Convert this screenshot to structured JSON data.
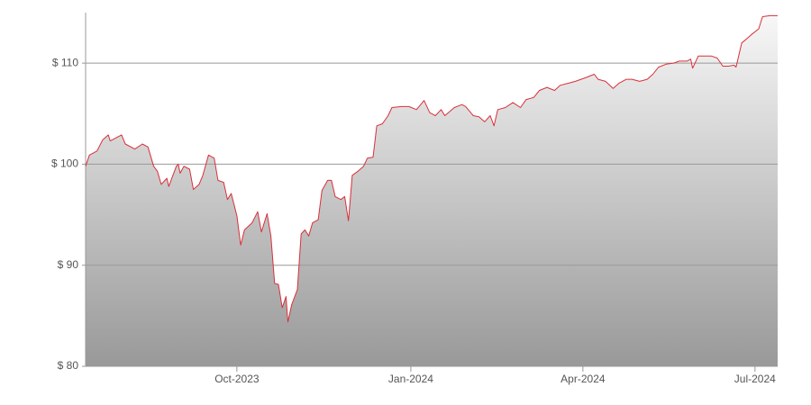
{
  "chart_data": {
    "type": "area",
    "x": [
      0,
      2,
      6,
      9,
      12,
      13,
      19,
      21,
      26,
      30,
      33,
      36,
      38,
      40,
      43,
      44,
      48,
      49,
      50,
      52,
      55,
      57,
      60,
      62,
      65,
      68,
      70,
      73,
      75,
      77,
      80,
      82,
      84,
      88,
      91,
      93,
      96,
      98,
      100,
      102,
      104,
      106,
      107,
      109,
      112,
      114,
      116,
      118,
      120,
      123,
      125,
      128,
      130,
      132,
      135,
      137,
      139,
      141,
      144,
      147,
      149,
      152,
      154,
      157,
      160,
      162,
      167,
      171,
      175,
      179,
      182,
      185,
      188,
      190,
      195,
      199,
      201,
      205,
      208,
      211,
      214,
      216,
      218,
      222,
      226,
      230,
      233,
      237,
      240,
      244,
      248,
      251,
      255,
      259,
      262,
      265,
      269,
      271,
      275,
      279,
      282,
      286,
      289,
      293,
      297,
      300,
      303,
      307,
      311,
      314,
      318,
      320,
      321,
      324,
      327,
      331,
      334,
      337,
      340,
      343,
      344,
      347,
      349,
      352,
      356,
      358,
      362,
      366
    ],
    "values": [
      99.8,
      100.9,
      101.3,
      102.4,
      102.9,
      102.3,
      102.9,
      102.0,
      101.5,
      102.0,
      101.7,
      99.8,
      99.3,
      98.0,
      98.6,
      97.8,
      99.8,
      100.0,
      99.1,
      99.8,
      99.5,
      97.5,
      98.0,
      98.9,
      100.9,
      100.6,
      98.4,
      98.2,
      96.5,
      97.1,
      94.9,
      92.0,
      93.5,
      94.2,
      95.3,
      93.3,
      95.1,
      92.9,
      88.2,
      88.1,
      85.8,
      86.9,
      84.4,
      86.1,
      87.6,
      93.1,
      93.5,
      92.9,
      94.2,
      94.5,
      97.4,
      98.4,
      98.4,
      96.8,
      96.5,
      96.8,
      94.4,
      98.9,
      99.3,
      99.8,
      100.6,
      100.7,
      103.8,
      104.0,
      104.8,
      105.6,
      105.7,
      105.7,
      105.4,
      106.3,
      105.1,
      104.8,
      105.4,
      104.8,
      105.6,
      105.9,
      105.7,
      104.8,
      104.7,
      104.2,
      104.8,
      103.8,
      105.4,
      105.6,
      106.1,
      105.6,
      106.4,
      106.6,
      107.3,
      107.6,
      107.3,
      107.8,
      108.0,
      108.2,
      108.4,
      108.6,
      108.9,
      108.4,
      108.2,
      107.5,
      108.0,
      108.4,
      108.4,
      108.2,
      108.4,
      108.9,
      109.6,
      109.9,
      110.0,
      110.2,
      110.2,
      110.4,
      109.5,
      110.7,
      110.7,
      110.7,
      110.5,
      109.7,
      109.7,
      109.8,
      109.6,
      112.0,
      112.3,
      112.8,
      113.4,
      114.6,
      114.7,
      114.7
    ],
    "color": "#d9303a",
    "xlim": [
      0,
      366
    ],
    "xticks": [
      {
        "value": 80,
        "label": "Oct-2023"
      },
      {
        "value": 172,
        "label": "Jan-2024"
      },
      {
        "value": 263,
        "label": "Apr-2024"
      },
      {
        "value": 354,
        "label": "Jul-2024"
      }
    ],
    "ylim": [
      80,
      115
    ],
    "yticks": [
      {
        "value": 80,
        "label": "$ 80"
      },
      {
        "value": 90,
        "label": "$ 90"
      },
      {
        "value": 100,
        "label": "$ 100"
      },
      {
        "value": 110,
        "label": "$ 110"
      }
    ],
    "grid": true
  }
}
